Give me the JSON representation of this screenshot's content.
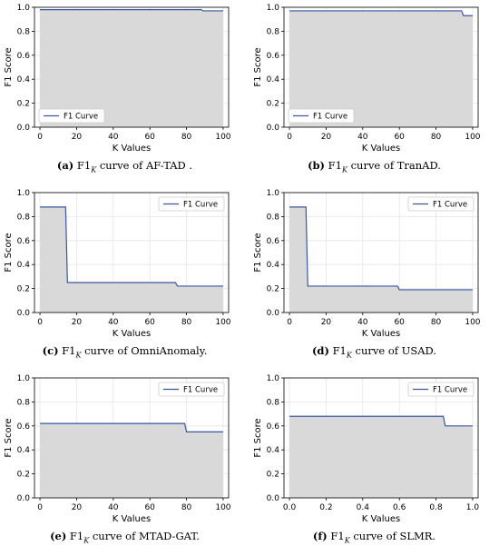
{
  "figures": [
    {
      "letter": "(a)",
      "caption_pre": " F1",
      "caption_sub": "K",
      "caption_post": " curve of AF-TAD .",
      "legend": {
        "label": "F1 Curve",
        "loc": "lower-left"
      }
    },
    {
      "letter": "(b)",
      "caption_pre": " F1",
      "caption_sub": "K",
      "caption_post": " curve of TranAD.",
      "legend": {
        "label": "F1 Curve",
        "loc": "lower-left"
      }
    },
    {
      "letter": "(c)",
      "caption_pre": " F1",
      "caption_sub": "K",
      "caption_post": " curve of OmniAnomaly.",
      "legend": {
        "label": "F1 Curve",
        "loc": "upper-right"
      }
    },
    {
      "letter": "(d)",
      "caption_pre": " F1",
      "caption_sub": "K",
      "caption_post": " curve of USAD.",
      "legend": {
        "label": "F1 Curve",
        "loc": "upper-right"
      }
    },
    {
      "letter": "(e)",
      "caption_pre": " F1",
      "caption_sub": "K",
      "caption_post": " curve of MTAD-GAT.",
      "legend": {
        "label": "F1 Curve",
        "loc": "upper-right"
      }
    },
    {
      "letter": "(f)",
      "caption_pre": " F1",
      "caption_sub": "K",
      "caption_post": " curve of SLMR.",
      "legend": {
        "label": "F1 Curve",
        "loc": "upper-right"
      }
    }
  ],
  "style": {
    "line_color": "#3b55a4",
    "fill_color": "#d9d9d9",
    "grid_color": "#e6e6e6"
  },
  "chart_data": [
    {
      "type": "area",
      "xlabel": "K Values",
      "ylabel": "F1 Score",
      "xlim": [
        -3,
        103
      ],
      "ylim": [
        0,
        1.0
      ],
      "xticks": [
        0,
        20,
        40,
        60,
        80,
        100
      ],
      "xtick_labels": [
        "0",
        "20",
        "40",
        "60",
        "80",
        "100"
      ],
      "yticks": [
        0,
        0.2,
        0.4,
        0.6,
        0.8,
        1.0
      ],
      "ytick_labels": [
        "0.0",
        "0.2",
        "0.4",
        "0.6",
        "0.8",
        "1.0"
      ],
      "grid": true,
      "series": [
        {
          "name": "F1 Curve",
          "x": [
            0,
            88,
            89,
            100
          ],
          "y": [
            0.98,
            0.98,
            0.97,
            0.97
          ]
        }
      ]
    },
    {
      "type": "area",
      "xlabel": "K Values",
      "ylabel": "F1 Score",
      "xlim": [
        -3,
        103
      ],
      "ylim": [
        0,
        1.0
      ],
      "xticks": [
        0,
        20,
        40,
        60,
        80,
        100
      ],
      "xtick_labels": [
        "0",
        "20",
        "40",
        "60",
        "80",
        "100"
      ],
      "yticks": [
        0,
        0.2,
        0.4,
        0.6,
        0.8,
        1.0
      ],
      "ytick_labels": [
        "0.0",
        "0.2",
        "0.4",
        "0.6",
        "0.8",
        "1.0"
      ],
      "grid": true,
      "series": [
        {
          "name": "F1 Curve",
          "x": [
            0,
            94,
            95,
            100
          ],
          "y": [
            0.97,
            0.97,
            0.93,
            0.93
          ]
        }
      ]
    },
    {
      "type": "area",
      "xlabel": "K Values",
      "ylabel": "F1 Score",
      "xlim": [
        -3,
        103
      ],
      "ylim": [
        0,
        1.0
      ],
      "xticks": [
        0,
        20,
        40,
        60,
        80,
        100
      ],
      "xtick_labels": [
        "0",
        "20",
        "40",
        "60",
        "80",
        "100"
      ],
      "yticks": [
        0,
        0.2,
        0.4,
        0.6,
        0.8,
        1.0
      ],
      "ytick_labels": [
        "0.0",
        "0.2",
        "0.4",
        "0.6",
        "0.8",
        "1.0"
      ],
      "grid": true,
      "series": [
        {
          "name": "F1 Curve",
          "x": [
            0,
            14,
            15,
            74,
            75,
            100
          ],
          "y": [
            0.88,
            0.88,
            0.25,
            0.25,
            0.22,
            0.22
          ]
        }
      ]
    },
    {
      "type": "area",
      "xlabel": "K Values",
      "ylabel": "F1 Score",
      "xlim": [
        -3,
        103
      ],
      "ylim": [
        0,
        1.0
      ],
      "xticks": [
        0,
        20,
        40,
        60,
        80,
        100
      ],
      "xtick_labels": [
        "0",
        "20",
        "40",
        "60",
        "80",
        "100"
      ],
      "yticks": [
        0,
        0.2,
        0.4,
        0.6,
        0.8,
        1.0
      ],
      "ytick_labels": [
        "0.0",
        "0.2",
        "0.4",
        "0.6",
        "0.8",
        "1.0"
      ],
      "grid": true,
      "series": [
        {
          "name": "F1 Curve",
          "x": [
            0,
            9,
            10,
            59,
            60,
            100
          ],
          "y": [
            0.88,
            0.88,
            0.22,
            0.22,
            0.19,
            0.19
          ]
        }
      ]
    },
    {
      "type": "area",
      "xlabel": "K Values",
      "ylabel": "F1 Score",
      "xlim": [
        -3,
        103
      ],
      "ylim": [
        0,
        1.0
      ],
      "xticks": [
        0,
        20,
        40,
        60,
        80,
        100
      ],
      "xtick_labels": [
        "0",
        "20",
        "40",
        "60",
        "80",
        "100"
      ],
      "yticks": [
        0,
        0.2,
        0.4,
        0.6,
        0.8,
        1.0
      ],
      "ytick_labels": [
        "0.0",
        "0.2",
        "0.4",
        "0.6",
        "0.8",
        "1.0"
      ],
      "grid": true,
      "series": [
        {
          "name": "F1 Curve",
          "x": [
            0,
            79,
            80,
            100
          ],
          "y": [
            0.62,
            0.62,
            0.55,
            0.55
          ]
        }
      ]
    },
    {
      "type": "area",
      "xlabel": "K Values",
      "ylabel": "F1 Score",
      "xlim": [
        -0.03,
        1.03
      ],
      "ylim": [
        0,
        1.0
      ],
      "xticks": [
        0,
        0.2,
        0.4,
        0.6,
        0.8,
        1.0
      ],
      "xtick_labels": [
        "0.0",
        "0.2",
        "0.4",
        "0.6",
        "0.8",
        "1.0"
      ],
      "yticks": [
        0,
        0.2,
        0.4,
        0.6,
        0.8,
        1.0
      ],
      "ytick_labels": [
        "0.0",
        "0.2",
        "0.4",
        "0.6",
        "0.8",
        "1.0"
      ],
      "grid": true,
      "series": [
        {
          "name": "F1 Curve",
          "x": [
            0,
            0.84,
            0.85,
            1.0
          ],
          "y": [
            0.68,
            0.68,
            0.6,
            0.6
          ]
        }
      ]
    }
  ]
}
